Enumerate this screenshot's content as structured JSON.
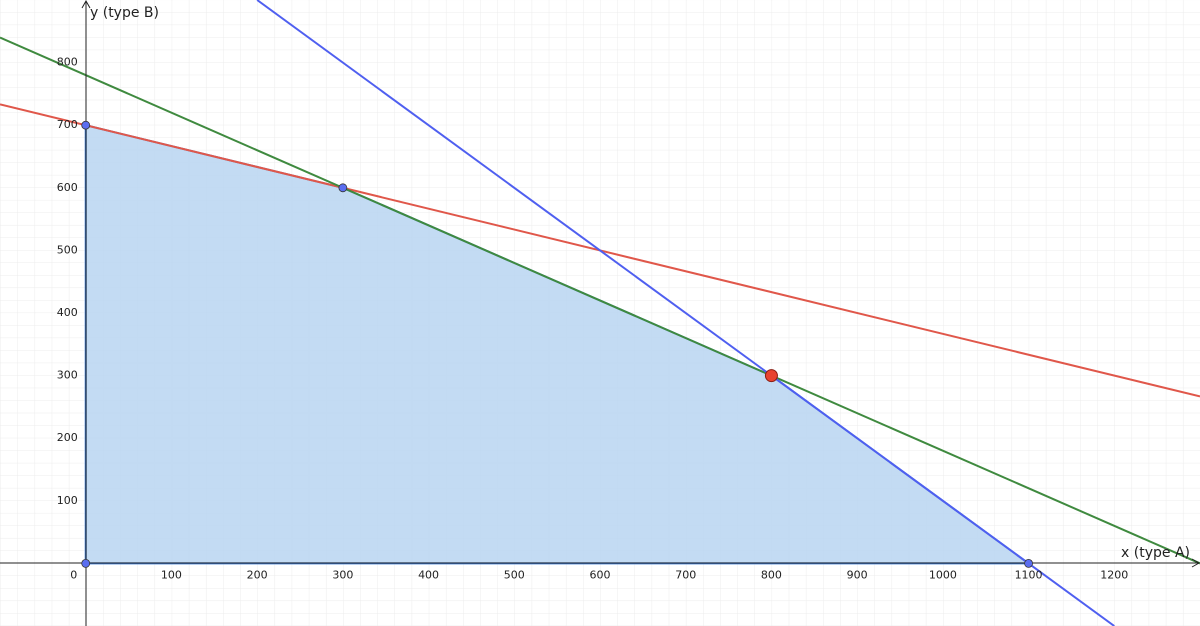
{
  "chart_data": {
    "type": "line",
    "x_label": "x (type A)",
    "y_label": "y (type B)",
    "xlim": [
      -100,
      1300
    ],
    "ylim": [
      -100,
      900
    ],
    "xticks": [
      0,
      100,
      200,
      300,
      400,
      500,
      600,
      700,
      800,
      900,
      1000,
      1100,
      1200
    ],
    "yticks": [
      100,
      200,
      300,
      400,
      500,
      600,
      700,
      800
    ],
    "grid": true,
    "region": {
      "color": "#b9d5f1",
      "edge_color": "#3a7bd5",
      "x": [
        0,
        0,
        300,
        800,
        1100
      ],
      "y": [
        0,
        700,
        600,
        300,
        0
      ]
    },
    "series": [
      {
        "color": "#e0574a",
        "x": [
          -100,
          1300
        ],
        "y": [
          733.3,
          266.7
        ]
      },
      {
        "color": "#3f8a3f",
        "x": [
          -100,
          1300
        ],
        "y": [
          840,
          0
        ]
      },
      {
        "color": "#4f5ff0",
        "x": [
          200,
          1200
        ],
        "y": [
          900,
          -100
        ]
      }
    ],
    "points": {
      "color": "#5b6ef0",
      "x": [
        0,
        0,
        300,
        1100
      ],
      "y": [
        0,
        700,
        600,
        0
      ]
    },
    "optimum": {
      "color": "#e8432f",
      "x": [
        800
      ],
      "y": [
        300
      ]
    }
  }
}
